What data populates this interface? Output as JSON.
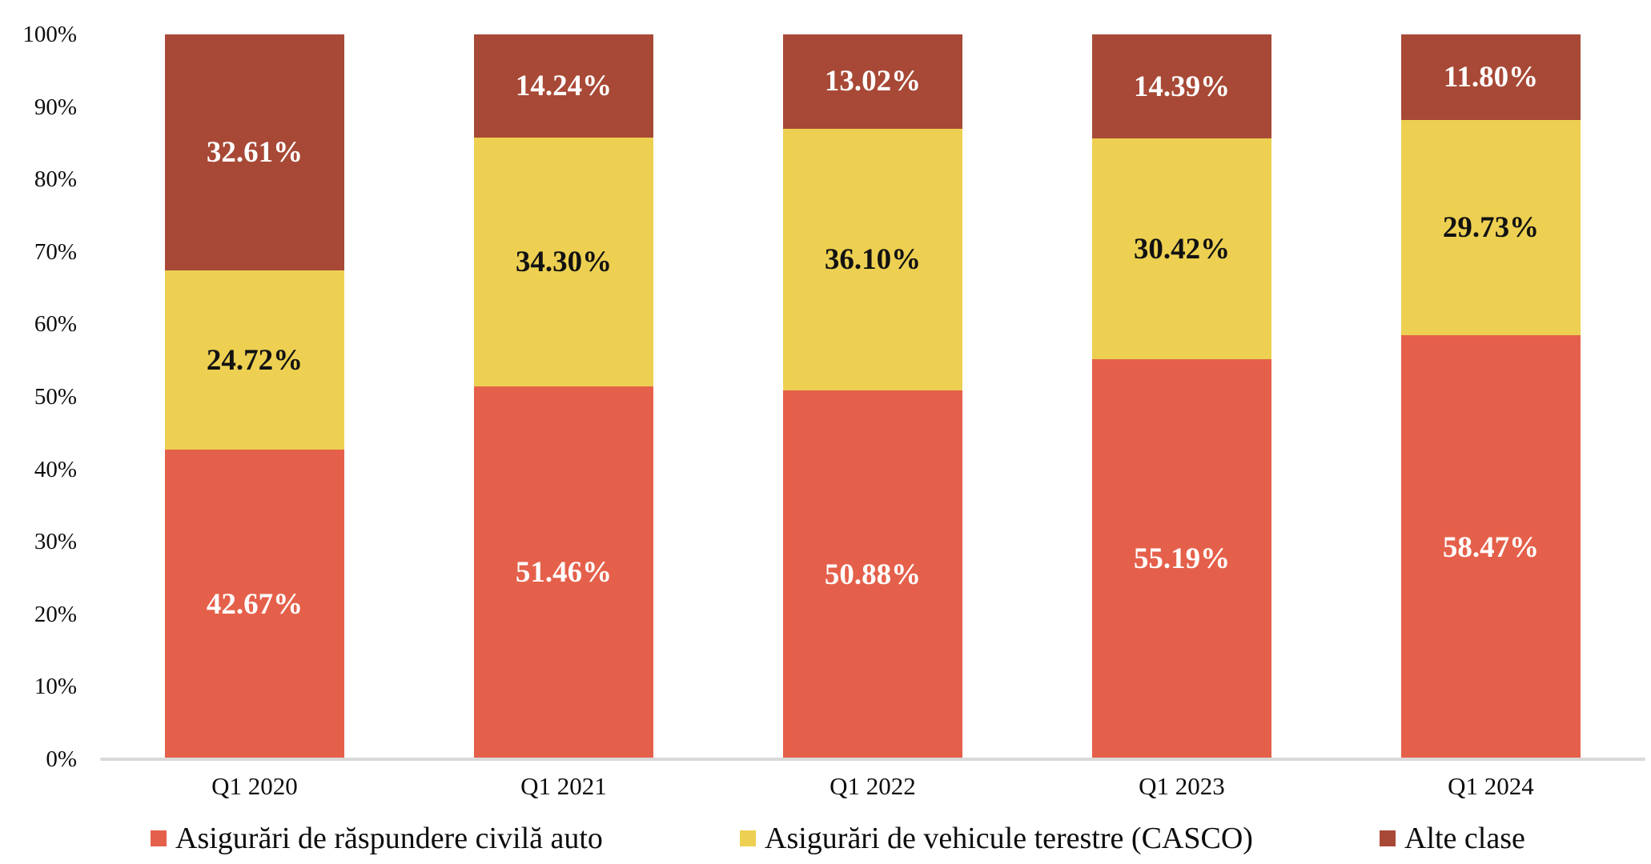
{
  "chart_data": {
    "type": "bar",
    "variant": "stacked-100-percent",
    "title": "",
    "categories": [
      "Q1 2020",
      "Q1 2021",
      "Q1 2022",
      "Q1 2023",
      "Q1 2024"
    ],
    "series": [
      {
        "name": "Asigurări de răspundere civilă auto",
        "color": "#E5604A",
        "label_text_color": "#FFFFFF",
        "values": [
          42.67,
          51.46,
          50.88,
          55.19,
          58.47
        ],
        "labels": [
          "42.67%",
          "51.46%",
          "50.88%",
          "55.19%",
          "58.47%"
        ]
      },
      {
        "name": "Asigurări de vehicule terestre (CASCO)",
        "color": "#EDD052",
        "label_text_color": "#121212",
        "values": [
          24.72,
          34.3,
          36.1,
          30.42,
          29.73
        ],
        "labels": [
          "24.72%",
          "34.30%",
          "36.10%",
          "30.42%",
          "29.73%"
        ]
      },
      {
        "name": "Alte clase",
        "color": "#A74936",
        "label_text_color": "#FFFFFF",
        "values": [
          32.61,
          14.24,
          13.02,
          14.39,
          11.8
        ],
        "labels": [
          "32.61%",
          "14.24%",
          "13.02%",
          "14.39%",
          "11.80%"
        ]
      }
    ],
    "y_axis": {
      "min": 0,
      "max": 100,
      "step": 10,
      "tick_labels": [
        "0%",
        "10%",
        "20%",
        "30%",
        "40%",
        "50%",
        "60%",
        "70%",
        "80%",
        "90%",
        "100%"
      ],
      "gridlines": false
    },
    "x_axis": {
      "baseline_color": "#D9D9D9"
    },
    "legend": {
      "position": "bottom",
      "entries": [
        "Asigurări de răspundere civilă auto",
        "Asigurări de vehicule terestre (CASCO)",
        "Alte clase"
      ]
    }
  }
}
